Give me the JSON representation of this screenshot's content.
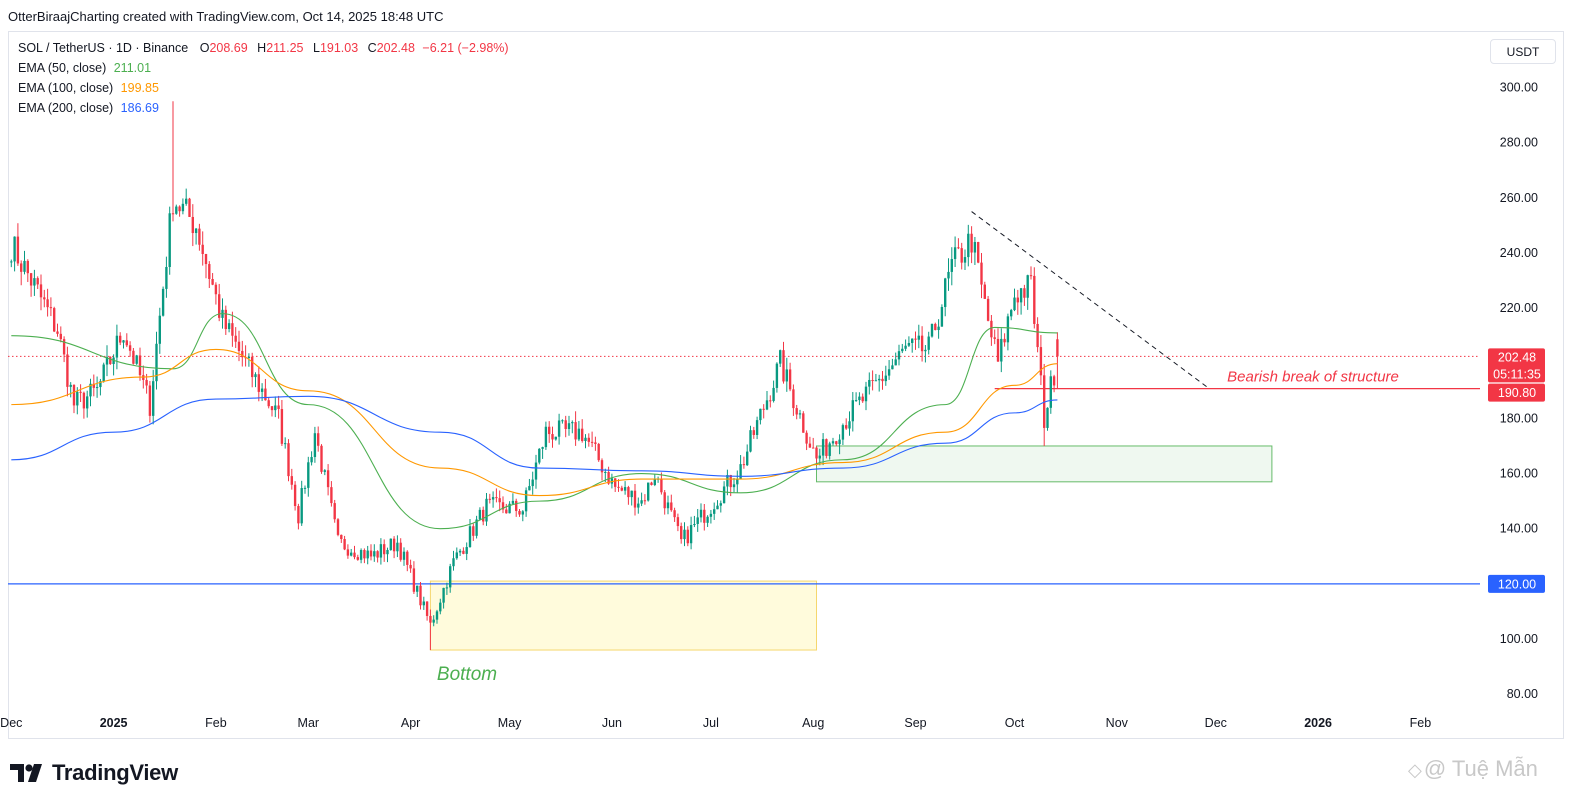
{
  "header": {
    "attribution": "OtterBiraajCharting created with TradingView.com, Oct 14, 2025 18:48 UTC"
  },
  "legend": {
    "symbol": "SOL / TetherUS · 1D · Binance",
    "ohlc": {
      "o_label": "O",
      "o_value": "208.69",
      "h_label": "H",
      "h_value": "211.25",
      "l_label": "L",
      "l_value": "191.03",
      "c_label": "C",
      "c_value": "202.48",
      "change": "−6.21 (−2.98%)"
    },
    "ema": [
      {
        "label": "EMA (50, close)",
        "value": "211.01",
        "color": "#4caf50"
      },
      {
        "label": "EMA (100, close)",
        "value": "199.85",
        "color": "#ff9800"
      },
      {
        "label": "EMA (200, close)",
        "value": "186.69",
        "color": "#2962ff"
      }
    ]
  },
  "currency_button": "USDT",
  "footer": {
    "brand": "TradingView",
    "watermark": "@ Tuệ Mẫn"
  },
  "chart_data": {
    "type": "candlestick",
    "symbol": "SOLUSDT",
    "timeframe": "1D",
    "ylim": [
      73,
      310
    ],
    "y_ticks": [
      "300.00",
      "280.00",
      "260.00",
      "240.00",
      "220.00",
      "200.00",
      "180.00",
      "160.00",
      "140.00",
      "120.00",
      "100.00",
      "80.00"
    ],
    "x_ticks": [
      "Dec",
      "2025",
      "Feb",
      "Mar",
      "Apr",
      "May",
      "Jun",
      "Jul",
      "Aug",
      "Sep",
      "Oct",
      "Nov",
      "Dec",
      "2026",
      "Feb"
    ],
    "x_tick_dates": [
      "2024-12-01",
      "2025-01-01",
      "2025-02-01",
      "2025-03-01",
      "2025-04-01",
      "2025-05-01",
      "2025-06-01",
      "2025-07-01",
      "2025-08-01",
      "2025-09-01",
      "2025-10-01",
      "2025-11-01",
      "2025-12-01",
      "2026-01-01",
      "2026-02-01"
    ],
    "colors": {
      "up": "#089981",
      "down": "#f23645"
    },
    "anchors": [
      [
        "2024-12-01",
        243
      ],
      [
        "2024-12-08",
        228
      ],
      [
        "2024-12-15",
        212
      ],
      [
        "2024-12-20",
        185
      ],
      [
        "2024-12-27",
        190
      ],
      [
        "2025-01-04",
        212
      ],
      [
        "2025-01-12",
        185
      ],
      [
        "2025-01-19",
        260
      ],
      [
        "2025-01-26",
        250
      ],
      [
        "2025-02-03",
        215
      ],
      [
        "2025-02-10",
        200
      ],
      [
        "2025-02-20",
        180
      ],
      [
        "2025-02-26",
        145
      ],
      [
        "2025-03-03",
        175
      ],
      [
        "2025-03-10",
        135
      ],
      [
        "2025-03-20",
        130
      ],
      [
        "2025-03-28",
        135
      ],
      [
        "2025-04-07",
        105
      ],
      [
        "2025-04-14",
        128
      ],
      [
        "2025-04-24",
        148
      ],
      [
        "2025-05-05",
        147
      ],
      [
        "2025-05-12",
        175
      ],
      [
        "2025-05-23",
        175
      ],
      [
        "2025-06-02",
        155
      ],
      [
        "2025-06-10",
        150
      ],
      [
        "2025-06-14",
        160
      ],
      [
        "2025-06-22",
        135
      ],
      [
        "2025-07-02",
        150
      ],
      [
        "2025-07-10",
        162
      ],
      [
        "2025-07-22",
        200
      ],
      [
        "2025-08-02",
        165
      ],
      [
        "2025-08-11",
        180
      ],
      [
        "2025-08-22",
        195
      ],
      [
        "2025-08-29",
        205
      ],
      [
        "2025-09-05",
        205
      ],
      [
        "2025-09-12",
        235
      ],
      [
        "2025-09-18",
        245
      ],
      [
        "2025-09-23",
        215
      ],
      [
        "2025-09-26",
        200
      ],
      [
        "2025-10-01",
        225
      ],
      [
        "2025-10-06",
        228
      ],
      [
        "2025-10-10",
        180
      ],
      [
        "2025-10-14",
        202.48
      ]
    ],
    "spikes": [
      {
        "date": "2025-01-19",
        "high": 295
      },
      {
        "date": "2025-04-07",
        "low": 96
      },
      {
        "date": "2025-10-10",
        "low": 170
      }
    ],
    "last_candle": {
      "date": "2025-10-14",
      "open": 208.69,
      "high": 211.25,
      "low": 191.03,
      "close": 202.48
    },
    "ema_series": [
      {
        "name": "EMA (50, close)",
        "color": "#4caf50",
        "points": [
          [
            "2024-12-01",
            210
          ],
          [
            "2025-01-19",
            198
          ],
          [
            "2025-02-03",
            218
          ],
          [
            "2025-03-01",
            185
          ],
          [
            "2025-04-10",
            140
          ],
          [
            "2025-05-10",
            150
          ],
          [
            "2025-06-10",
            160
          ],
          [
            "2025-07-10",
            153
          ],
          [
            "2025-08-10",
            165
          ],
          [
            "2025-09-10",
            185
          ],
          [
            "2025-09-25",
            213
          ],
          [
            "2025-10-14",
            211.01
          ]
        ]
      },
      {
        "name": "EMA (100, close)",
        "color": "#ff9800",
        "points": [
          [
            "2024-12-01",
            185
          ],
          [
            "2025-01-10",
            195
          ],
          [
            "2025-02-01",
            205
          ],
          [
            "2025-03-01",
            190
          ],
          [
            "2025-04-10",
            162
          ],
          [
            "2025-05-10",
            152
          ],
          [
            "2025-06-10",
            158
          ],
          [
            "2025-07-10",
            158
          ],
          [
            "2025-08-10",
            164
          ],
          [
            "2025-09-10",
            175
          ],
          [
            "2025-10-01",
            192
          ],
          [
            "2025-10-14",
            199.85
          ]
        ]
      },
      {
        "name": "EMA (200, close)",
        "color": "#2962ff",
        "points": [
          [
            "2024-12-01",
            165
          ],
          [
            "2025-01-01",
            175
          ],
          [
            "2025-02-01",
            187
          ],
          [
            "2025-03-01",
            188
          ],
          [
            "2025-04-10",
            175
          ],
          [
            "2025-05-10",
            162
          ],
          [
            "2025-06-10",
            161
          ],
          [
            "2025-07-10",
            159
          ],
          [
            "2025-08-10",
            162
          ],
          [
            "2025-09-10",
            171
          ],
          [
            "2025-10-01",
            182
          ],
          [
            "2025-10-14",
            186.69
          ]
        ]
      }
    ],
    "annotations": {
      "current_price": {
        "value": "202.48",
        "countdown": "05:11:35",
        "color": "#f23645"
      },
      "break_level": {
        "value": "190.80",
        "label": "Bearish break of structure",
        "start": "2025-09-25",
        "label_color": "#f23645"
      },
      "support_line": {
        "value": "120.00",
        "color": "#2962ff"
      },
      "trendline": {
        "from": [
          "2025-09-18",
          255
        ],
        "to": [
          "2025-11-29",
          190.8
        ]
      },
      "green_zone": {
        "from": "2025-08-02",
        "to": "2025-12-18",
        "low": 157,
        "high": 170
      },
      "yellow_zone": {
        "from": "2025-04-07",
        "to": "2025-08-02",
        "low": 96,
        "high": 121
      },
      "bottom_label": {
        "text": "Bottom",
        "color": "#4caf50"
      }
    }
  }
}
